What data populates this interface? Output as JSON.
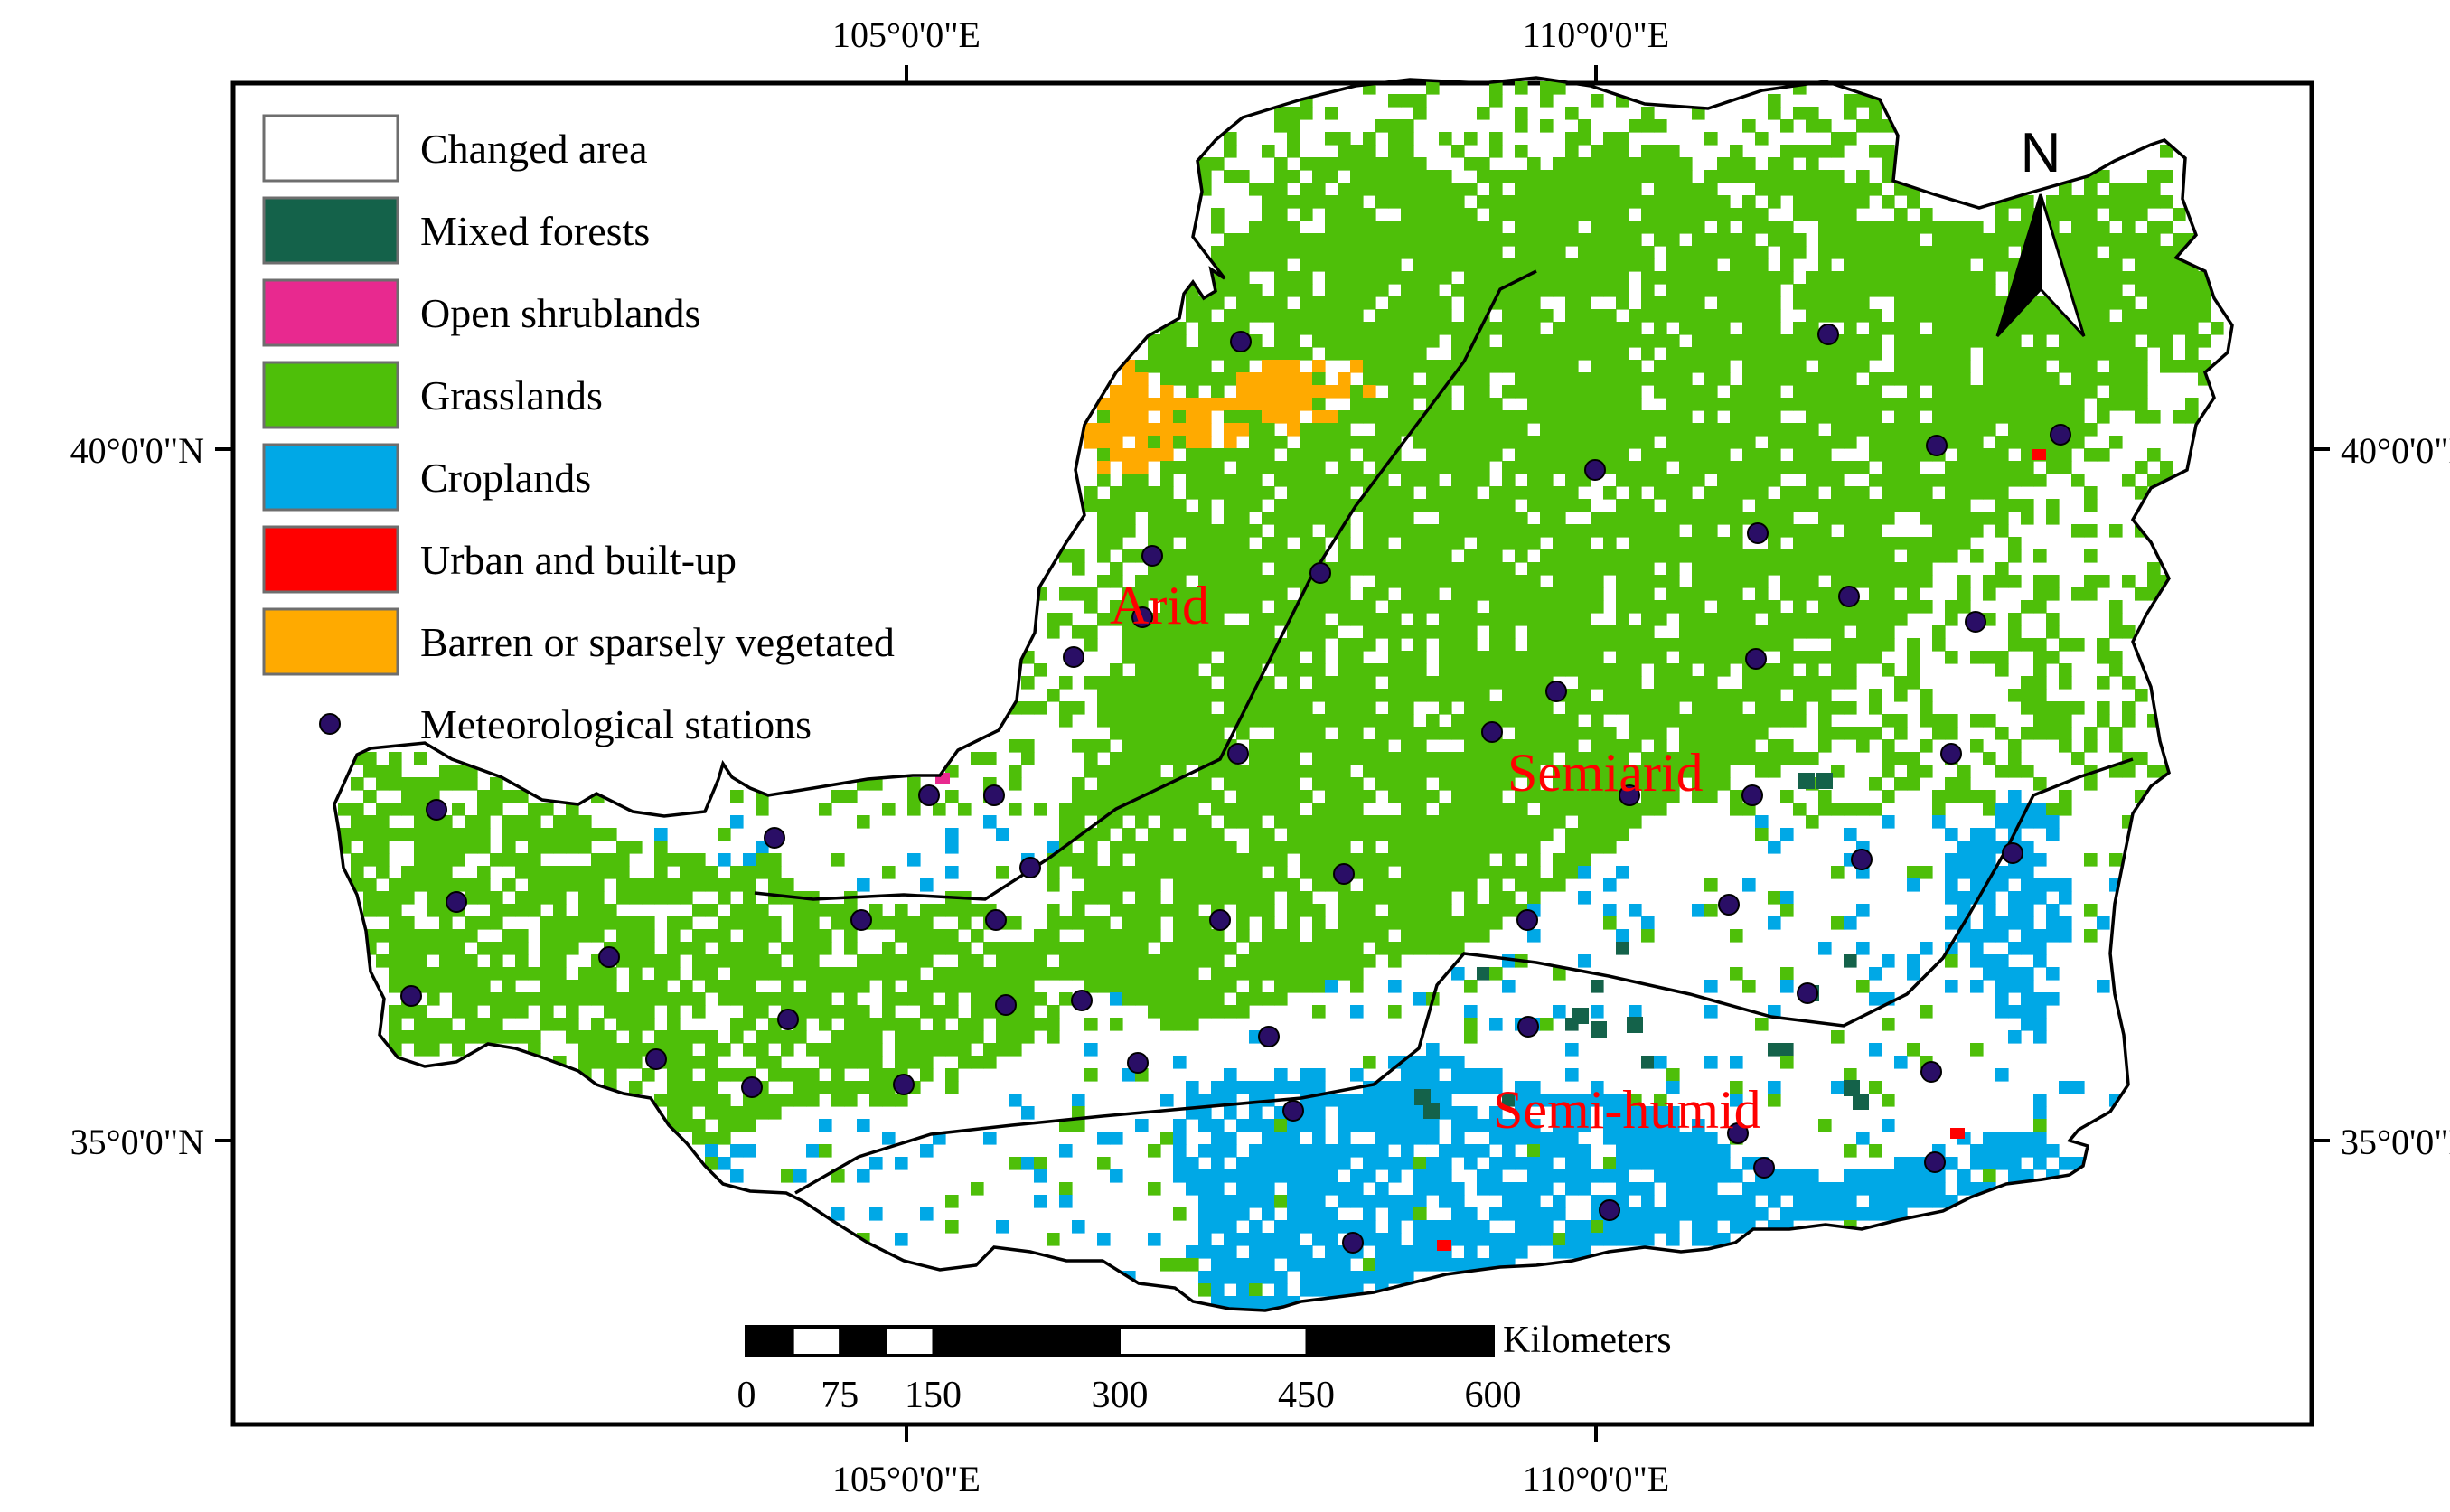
{
  "colors": {
    "changed": "#ffffff",
    "mixed_forests": "#14624a",
    "open_shrublands": "#e8298f",
    "grasslands": "#4ebf09",
    "croplands": "#00a8e6",
    "urban": "#ff0000",
    "barren": "#ffaa00",
    "station": "#2a0e66",
    "zone_text": "#ff0000"
  },
  "graticule": {
    "top": [
      "105°0'0\"E",
      "110°0'0\"E"
    ],
    "bottom": [
      "105°0'0\"E",
      "110°0'0\"E"
    ],
    "left": [
      "40°0'0\"N",
      "35°0'0\"N"
    ],
    "right": [
      "40°0'0\"N",
      "35°0'0\"N"
    ]
  },
  "legend": {
    "items": [
      {
        "key": "changed",
        "label": "Changed area",
        "icon": "swatch"
      },
      {
        "key": "mixed_forests",
        "label": "Mixed forests",
        "icon": "swatch"
      },
      {
        "key": "open_shrublands",
        "label": "Open shrublands",
        "icon": "swatch"
      },
      {
        "key": "grasslands",
        "label": "Grasslands",
        "icon": "swatch"
      },
      {
        "key": "croplands",
        "label": "Croplands",
        "icon": "swatch"
      },
      {
        "key": "urban",
        "label": "Urban and built-up",
        "icon": "swatch"
      },
      {
        "key": "barren",
        "label": "Barren or sparsely vegetated",
        "icon": "swatch"
      },
      {
        "key": "station",
        "label": "Meteorological stations",
        "icon": "dot"
      }
    ]
  },
  "zones": {
    "arid": "Arid",
    "semiarid": "Semiarid",
    "semihumid": "Semi-humid"
  },
  "north_arrow": {
    "label": "N",
    "icon": "north-arrow-icon"
  },
  "scale_bar": {
    "unit": "Kilometers",
    "ticks": [
      "0",
      "75",
      "150",
      "300",
      "450",
      "600"
    ]
  }
}
